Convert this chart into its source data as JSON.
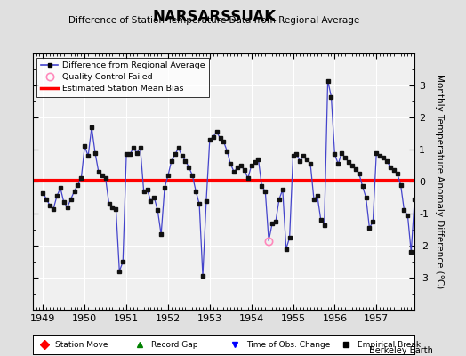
{
  "title": "NARSARSSUAK",
  "subtitle": "Difference of Station Temperature Data from Regional Average",
  "ylabel_right": "Monthly Temperature Anomaly Difference (°C)",
  "footer": "Berkeley Earth",
  "ylim": [
    -4,
    4
  ],
  "yticks": [
    -3,
    -2,
    -1,
    0,
    1,
    2,
    3
  ],
  "mean_bias": 0.03,
  "start_year": 1949,
  "end_year": 1957,
  "xtick_years": [
    1949,
    1950,
    1951,
    1952,
    1953,
    1954,
    1955,
    1956,
    1957
  ],
  "line_color": "#4444cc",
  "dot_color": "#000000",
  "bias_color": "#ff0000",
  "bg_color": "#e0e0e0",
  "plot_bg": "#f0f0f0",
  "qc_failed_indices": [
    65
  ],
  "values": [
    -0.35,
    -0.55,
    -0.75,
    -0.85,
    -0.45,
    -0.2,
    -0.65,
    -0.8,
    -0.55,
    -0.3,
    -0.1,
    0.1,
    1.1,
    0.8,
    1.7,
    0.9,
    0.3,
    0.2,
    0.1,
    -0.7,
    -0.8,
    -0.85,
    -2.8,
    -2.5,
    0.85,
    0.85,
    1.05,
    0.9,
    1.05,
    -0.3,
    -0.25,
    -0.6,
    -0.5,
    -0.9,
    -1.65,
    -0.2,
    0.2,
    0.65,
    0.85,
    1.05,
    0.8,
    0.65,
    0.45,
    0.2,
    -0.3,
    -0.7,
    -2.95,
    -0.6,
    1.3,
    1.4,
    1.55,
    1.35,
    1.25,
    0.95,
    0.55,
    0.3,
    0.45,
    0.5,
    0.35,
    0.1,
    0.5,
    0.6,
    0.7,
    -0.15,
    -0.3,
    -1.85,
    -1.3,
    -1.25,
    -0.55,
    -0.25,
    -2.1,
    -1.75,
    0.8,
    0.85,
    0.65,
    0.8,
    0.7,
    0.55,
    -0.55,
    -0.45,
    -1.2,
    -1.35,
    3.15,
    2.65,
    0.85,
    0.55,
    0.9,
    0.75,
    0.6,
    0.5,
    0.4,
    0.25,
    -0.15,
    -0.5,
    -1.45,
    -1.25,
    0.9,
    0.8,
    0.75,
    0.65,
    0.45,
    0.35,
    0.25,
    -0.1,
    -0.9,
    -1.05,
    -2.2,
    -0.55
  ]
}
